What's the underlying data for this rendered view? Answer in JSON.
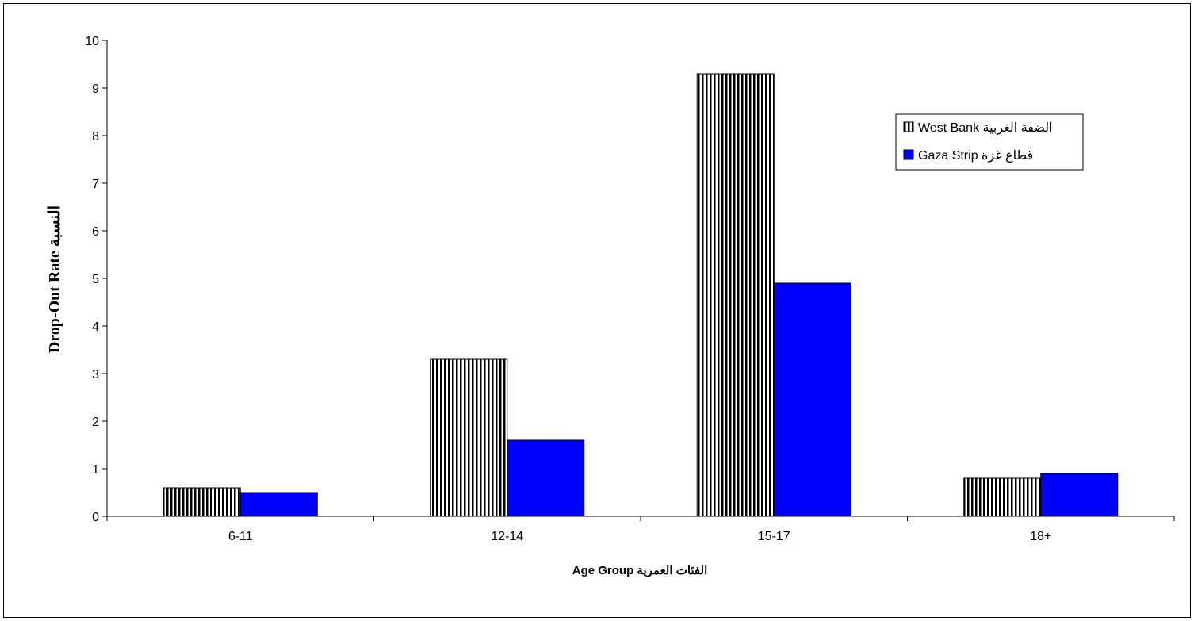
{
  "chart_data": {
    "type": "bar",
    "categories": [
      "6-11",
      "12-14",
      "15-17",
      "18+"
    ],
    "series": [
      {
        "name": "West Bank  الضفة الغربية",
        "values": [
          0.6,
          3.3,
          9.3,
          0.8
        ],
        "pattern": "vertical-stripes",
        "color": "#000000"
      },
      {
        "name": "Gaza Strip  قطاع غزة",
        "values": [
          0.5,
          1.6,
          4.9,
          0.9
        ],
        "pattern": "solid",
        "color": "#0000ff"
      }
    ],
    "xlabel": "Age Group   الفئات العمرية",
    "ylabel": "Drop-Out Rate  النسبة",
    "ylim": [
      0,
      10
    ],
    "yticks": [
      "0",
      "1",
      "2",
      "3",
      "4",
      "5",
      "6",
      "7",
      "8",
      "9",
      "10"
    ],
    "grid": false,
    "legend_position": "top-right"
  }
}
